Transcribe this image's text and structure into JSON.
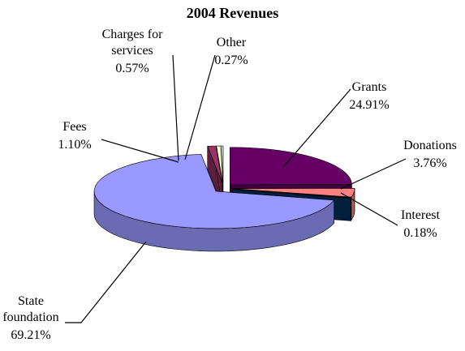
{
  "chart_data": {
    "type": "pie3d",
    "title": "2004 Revenues",
    "categories": [
      "Grants",
      "Donations",
      "Interest",
      "State foundation",
      "Fees",
      "Charges for services",
      "Other"
    ],
    "values": [
      24.91,
      3.76,
      0.18,
      69.21,
      1.1,
      0.57,
      0.27
    ],
    "value_labels": [
      "24.91%",
      "3.76%",
      "0.18%",
      "69.21%",
      "1.10%",
      "0.57%",
      "0.27%"
    ],
    "colors": [
      "#660066",
      "#ff8080",
      "#003366",
      "#9999ff",
      "#993366",
      "#ffffcc",
      "#ccffff"
    ]
  }
}
